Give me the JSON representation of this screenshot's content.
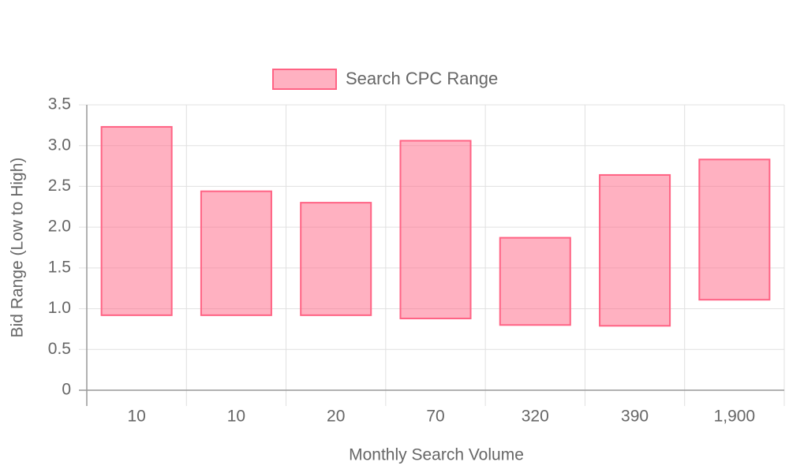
{
  "chart_data": {
    "type": "floating-bar",
    "x_label": "Monthly Search Volume",
    "y_label": "Bid Range (Low to High)",
    "categories": [
      "10",
      "10",
      "20",
      "70",
      "320",
      "390",
      "1,900"
    ],
    "series": [
      {
        "name": "Search CPC Range",
        "color": "#ff6384",
        "values": [
          [
            0.92,
            3.23
          ],
          [
            0.92,
            2.44
          ],
          [
            0.92,
            2.3
          ],
          [
            0.88,
            3.06
          ],
          [
            0.8,
            1.87
          ],
          [
            0.79,
            2.64
          ],
          [
            1.11,
            2.83
          ]
        ]
      }
    ],
    "ylim": [
      0,
      3.5
    ],
    "yticks": [
      0,
      0.5,
      {
        "value": 1,
        "label": "1.0"
      },
      1.5,
      {
        "value": 2,
        "label": "2.0"
      },
      2.5,
      {
        "value": 3,
        "label": "3.0"
      },
      3.5
    ],
    "grid": true,
    "legend": "top"
  }
}
